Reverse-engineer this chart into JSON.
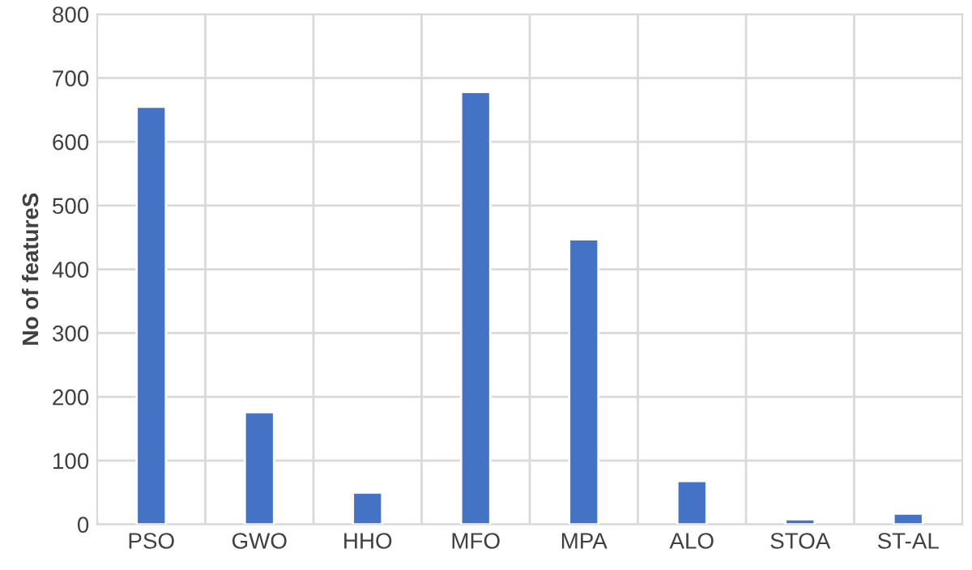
{
  "chart_data": {
    "type": "bar",
    "ylabel": "No of featureS",
    "categories": [
      "PSO",
      "GWO",
      "HHO",
      "MFO",
      "MPA",
      "ALO",
      "STOA",
      "ST-AL"
    ],
    "values": [
      655,
      176,
      50,
      678,
      447,
      68,
      8,
      17
    ],
    "color": "#4472c4",
    "ylim": [
      0,
      800
    ],
    "yticks": [
      0,
      100,
      200,
      300,
      400,
      500,
      600,
      700,
      800
    ],
    "grid": true
  }
}
